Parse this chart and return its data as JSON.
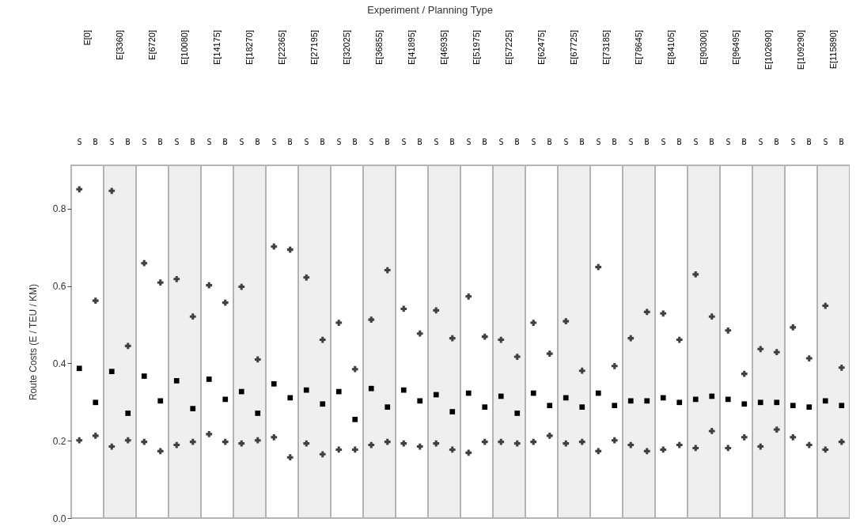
{
  "chart_data": [
    {
      "type": "scatter",
      "title": "E[0]",
      "annotations": [
        "Experiment / Planning Type"
      ],
      "ylabel": "Route Costs (E / TEU / KM)",
      "categories": [
        "S",
        "B"
      ],
      "ylim": [
        0,
        0.912
      ],
      "yticks": [
        {
          "value": 0,
          "label": "0.0"
        },
        0.2,
        0.4,
        0.6,
        0.8
      ],
      "series": [
        {
          "color": "#404040",
          "marker": "cross",
          "values": [
            0.85,
            0.562
          ]
        },
        {
          "color": "#404040",
          "marker": "cross",
          "values": [
            0.201,
            0.213
          ]
        },
        {
          "color": "#000000",
          "marker": "square",
          "values": [
            0.387,
            0.299
          ]
        }
      ]
    },
    {
      "type": "scatter",
      "title": "E[3360]",
      "tick_labels": "x",
      "categories": [
        "S",
        "B"
      ],
      "ylim": [
        0,
        0.912
      ],
      "series": [
        {
          "color": "#404040",
          "marker": "cross",
          "values": [
            0.846,
            0.445
          ]
        },
        {
          "color": "#404040",
          "marker": "cross",
          "values": [
            0.185,
            0.201
          ]
        },
        {
          "color": "#000000",
          "marker": "square",
          "values": [
            0.379,
            0.271
          ]
        }
      ]
    },
    {
      "type": "scatter",
      "title": "E[6720]",
      "tick_labels": "x",
      "categories": [
        "S",
        "B"
      ],
      "ylim": [
        0,
        0.912
      ],
      "series": [
        {
          "color": "#404040",
          "marker": "cross",
          "values": [
            0.659,
            0.609
          ]
        },
        {
          "color": "#404040",
          "marker": "cross",
          "values": [
            0.197,
            0.173
          ]
        },
        {
          "color": "#000000",
          "marker": "square",
          "values": [
            0.367,
            0.303
          ]
        }
      ]
    },
    {
      "type": "scatter",
      "title": "E[10080]",
      "tick_labels": "x",
      "categories": [
        "S",
        "B"
      ],
      "ylim": [
        0,
        0.912
      ],
      "series": [
        {
          "color": "#404040",
          "marker": "cross",
          "values": [
            0.618,
            0.521
          ]
        },
        {
          "color": "#404040",
          "marker": "cross",
          "values": [
            0.189,
            0.197
          ]
        },
        {
          "color": "#000000",
          "marker": "square",
          "values": [
            0.355,
            0.283
          ]
        }
      ]
    },
    {
      "type": "scatter",
      "title": "E[14175]",
      "tick_labels": "x",
      "categories": [
        "S",
        "B"
      ],
      "ylim": [
        0,
        0.912
      ],
      "series": [
        {
          "color": "#404040",
          "marker": "cross",
          "values": [
            0.602,
            0.557
          ]
        },
        {
          "color": "#404040",
          "marker": "cross",
          "values": [
            0.217,
            0.197
          ]
        },
        {
          "color": "#000000",
          "marker": "square",
          "values": [
            0.359,
            0.307
          ]
        }
      ]
    },
    {
      "type": "scatter",
      "title": "E[18270]",
      "tick_labels": "x",
      "categories": [
        "S",
        "B"
      ],
      "ylim": [
        0,
        0.912
      ],
      "series": [
        {
          "color": "#404040",
          "marker": "cross",
          "values": [
            0.598,
            0.41
          ]
        },
        {
          "color": "#404040",
          "marker": "cross",
          "values": [
            0.193,
            0.201
          ]
        },
        {
          "color": "#000000",
          "marker": "square",
          "values": [
            0.327,
            0.271
          ]
        }
      ]
    },
    {
      "type": "scatter",
      "title": "E[22365]",
      "tick_labels": "x",
      "categories": [
        "S",
        "B"
      ],
      "ylim": [
        0,
        0.912
      ],
      "series": [
        {
          "color": "#404040",
          "marker": "cross",
          "values": [
            0.702,
            0.694
          ]
        },
        {
          "color": "#404040",
          "marker": "cross",
          "values": [
            0.209,
            0.157
          ]
        },
        {
          "color": "#000000",
          "marker": "square",
          "values": [
            0.347,
            0.311
          ]
        }
      ]
    },
    {
      "type": "scatter",
      "title": "E[27195]",
      "tick_labels": "x",
      "categories": [
        "S",
        "B"
      ],
      "ylim": [
        0,
        0.912
      ],
      "series": [
        {
          "color": "#404040",
          "marker": "cross",
          "values": [
            0.622,
            0.461
          ]
        },
        {
          "color": "#404040",
          "marker": "cross",
          "values": [
            0.193,
            0.165
          ]
        },
        {
          "color": "#000000",
          "marker": "square",
          "values": [
            0.331,
            0.295
          ]
        }
      ]
    },
    {
      "type": "scatter",
      "title": "E[32025]",
      "tick_labels": "x",
      "categories": [
        "S",
        "B"
      ],
      "ylim": [
        0,
        0.912
      ],
      "series": [
        {
          "color": "#404040",
          "marker": "cross",
          "values": [
            0.505,
            0.385
          ]
        },
        {
          "color": "#404040",
          "marker": "cross",
          "values": [
            0.177,
            0.177
          ]
        },
        {
          "color": "#000000",
          "marker": "square",
          "values": [
            0.327,
            0.255
          ]
        }
      ]
    },
    {
      "type": "scatter",
      "title": "E[36855]",
      "tick_labels": "x",
      "categories": [
        "S",
        "B"
      ],
      "ylim": [
        0,
        0.912
      ],
      "series": [
        {
          "color": "#404040",
          "marker": "cross",
          "values": [
            0.513,
            0.641
          ]
        },
        {
          "color": "#404040",
          "marker": "cross",
          "values": [
            0.189,
            0.197
          ]
        },
        {
          "color": "#000000",
          "marker": "square",
          "values": [
            0.335,
            0.287
          ]
        }
      ]
    },
    {
      "type": "scatter",
      "title": "E[41895]",
      "tick_labels": "x",
      "categories": [
        "S",
        "B"
      ],
      "ylim": [
        0,
        0.912
      ],
      "series": [
        {
          "color": "#404040",
          "marker": "cross",
          "values": [
            0.541,
            0.477
          ]
        },
        {
          "color": "#404040",
          "marker": "cross",
          "values": [
            0.193,
            0.185
          ]
        },
        {
          "color": "#000000",
          "marker": "square",
          "values": [
            0.331,
            0.303
          ]
        }
      ]
    },
    {
      "type": "scatter",
      "title": "E[46935]",
      "tick_labels": "x",
      "categories": [
        "S",
        "B"
      ],
      "ylim": [
        0,
        0.912
      ],
      "series": [
        {
          "color": "#404040",
          "marker": "cross",
          "values": [
            0.537,
            0.465
          ]
        },
        {
          "color": "#404040",
          "marker": "cross",
          "values": [
            0.193,
            0.177
          ]
        },
        {
          "color": "#000000",
          "marker": "square",
          "values": [
            0.319,
            0.275
          ]
        }
      ]
    },
    {
      "type": "scatter",
      "title": "E[51975]",
      "tick_labels": "x",
      "categories": [
        "S",
        "B"
      ],
      "ylim": [
        0,
        0.912
      ],
      "series": [
        {
          "color": "#404040",
          "marker": "cross",
          "values": [
            0.573,
            0.469
          ]
        },
        {
          "color": "#404040",
          "marker": "cross",
          "values": [
            0.169,
            0.197
          ]
        },
        {
          "color": "#000000",
          "marker": "square",
          "values": [
            0.323,
            0.287
          ]
        }
      ]
    },
    {
      "type": "scatter",
      "title": "E[57225]",
      "tick_labels": "x",
      "categories": [
        "S",
        "B"
      ],
      "ylim": [
        0,
        0.912
      ],
      "series": [
        {
          "color": "#404040",
          "marker": "cross",
          "values": [
            0.461,
            0.417
          ]
        },
        {
          "color": "#404040",
          "marker": "cross",
          "values": [
            0.197,
            0.193
          ]
        },
        {
          "color": "#000000",
          "marker": "square",
          "values": [
            0.315,
            0.271
          ]
        }
      ]
    },
    {
      "type": "scatter",
      "title": "E[62475]",
      "tick_labels": "x",
      "categories": [
        "S",
        "B"
      ],
      "ylim": [
        0,
        0.912
      ],
      "series": [
        {
          "color": "#404040",
          "marker": "cross",
          "values": [
            0.505,
            0.425
          ]
        },
        {
          "color": "#404040",
          "marker": "cross",
          "values": [
            0.197,
            0.213
          ]
        },
        {
          "color": "#000000",
          "marker": "square",
          "values": [
            0.323,
            0.291
          ]
        }
      ]
    },
    {
      "type": "scatter",
      "title": "E[67725]",
      "tick_labels": "x",
      "categories": [
        "S",
        "B"
      ],
      "ylim": [
        0,
        0.912
      ],
      "series": [
        {
          "color": "#404040",
          "marker": "cross",
          "values": [
            0.509,
            0.381
          ]
        },
        {
          "color": "#404040",
          "marker": "cross",
          "values": [
            0.193,
            0.197
          ]
        },
        {
          "color": "#000000",
          "marker": "square",
          "values": [
            0.311,
            0.287
          ]
        }
      ]
    },
    {
      "type": "scatter",
      "title": "E[73185]",
      "tick_labels": "x",
      "categories": [
        "S",
        "B"
      ],
      "ylim": [
        0,
        0.912
      ],
      "series": [
        {
          "color": "#404040",
          "marker": "cross",
          "values": [
            0.649,
            0.393
          ]
        },
        {
          "color": "#404040",
          "marker": "cross",
          "values": [
            0.173,
            0.201
          ]
        },
        {
          "color": "#000000",
          "marker": "square",
          "values": [
            0.323,
            0.291
          ]
        }
      ]
    },
    {
      "type": "scatter",
      "title": "E[78645]",
      "tick_labels": "x",
      "categories": [
        "S",
        "B"
      ],
      "ylim": [
        0,
        0.912
      ],
      "series": [
        {
          "color": "#404040",
          "marker": "cross",
          "values": [
            0.465,
            0.533
          ]
        },
        {
          "color": "#404040",
          "marker": "cross",
          "values": [
            0.189,
            0.173
          ]
        },
        {
          "color": "#000000",
          "marker": "square",
          "values": [
            0.303,
            0.303
          ]
        }
      ]
    },
    {
      "type": "scatter",
      "title": "E[84105]",
      "tick_labels": "x",
      "categories": [
        "S",
        "B"
      ],
      "ylim": [
        0,
        0.912
      ],
      "series": [
        {
          "color": "#404040",
          "marker": "cross",
          "values": [
            0.529,
            0.461
          ]
        },
        {
          "color": "#404040",
          "marker": "cross",
          "values": [
            0.177,
            0.189
          ]
        },
        {
          "color": "#000000",
          "marker": "square",
          "values": [
            0.311,
            0.299
          ]
        }
      ]
    },
    {
      "type": "scatter",
      "title": "E[90300]",
      "tick_labels": "x",
      "categories": [
        "S",
        "B"
      ],
      "ylim": [
        0,
        0.912
      ],
      "series": [
        {
          "color": "#404040",
          "marker": "cross",
          "values": [
            0.63,
            0.521
          ]
        },
        {
          "color": "#404040",
          "marker": "cross",
          "values": [
            0.181,
            0.225
          ]
        },
        {
          "color": "#000000",
          "marker": "square",
          "values": [
            0.307,
            0.315
          ]
        }
      ]
    },
    {
      "type": "scatter",
      "title": "E[96495]",
      "tick_labels": "x",
      "categories": [
        "S",
        "B"
      ],
      "ylim": [
        0,
        0.912
      ],
      "series": [
        {
          "color": "#404040",
          "marker": "cross",
          "values": [
            0.485,
            0.373
          ]
        },
        {
          "color": "#404040",
          "marker": "cross",
          "values": [
            0.181,
            0.209
          ]
        },
        {
          "color": "#000000",
          "marker": "square",
          "values": [
            0.307,
            0.295
          ]
        }
      ]
    },
    {
      "type": "scatter",
      "title": "E[102690]",
      "tick_labels": "x",
      "categories": [
        "S",
        "B"
      ],
      "ylim": [
        0,
        0.912
      ],
      "series": [
        {
          "color": "#404040",
          "marker": "cross",
          "values": [
            0.437,
            0.429
          ]
        },
        {
          "color": "#404040",
          "marker": "cross",
          "values": [
            0.185,
            0.229
          ]
        },
        {
          "color": "#000000",
          "marker": "square",
          "values": [
            0.299,
            0.299
          ]
        }
      ]
    },
    {
      "type": "scatter",
      "title": "E[109290]",
      "tick_labels": "x",
      "categories": [
        "S",
        "B"
      ],
      "ylim": [
        0,
        0.912
      ],
      "series": [
        {
          "color": "#404040",
          "marker": "cross",
          "values": [
            0.493,
            0.413
          ]
        },
        {
          "color": "#404040",
          "marker": "cross",
          "values": [
            0.209,
            0.189
          ]
        },
        {
          "color": "#000000",
          "marker": "square",
          "values": [
            0.291,
            0.287
          ]
        }
      ]
    },
    {
      "type": "scatter",
      "title": "E[115890]",
      "tick_labels": "x",
      "categories": [
        "S",
        "B"
      ],
      "ylim": [
        0,
        0.912
      ],
      "series": [
        {
          "color": "#404040",
          "marker": "cross",
          "values": [
            0.549,
            0.389
          ]
        },
        {
          "color": "#404040",
          "marker": "cross",
          "values": [
            0.177,
            0.197
          ]
        },
        {
          "color": "#000000",
          "marker": "square",
          "values": [
            0.303,
            0.291
          ]
        }
      ]
    }
  ]
}
